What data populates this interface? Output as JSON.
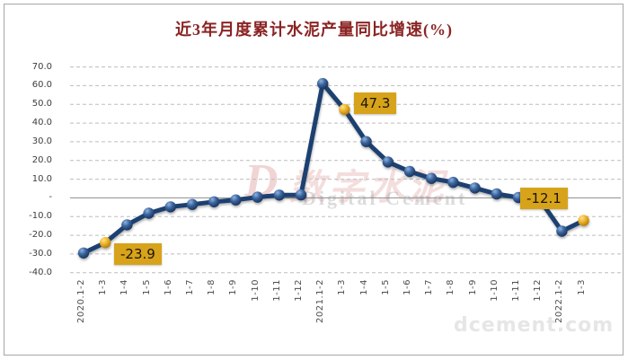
{
  "title": {
    "text": "近3年月度累计水泥产量同比增速(%)"
  },
  "watermark": {
    "logo": "D",
    "cn": "数字水泥",
    "en": "Digital Cement",
    "site": "dcement.com"
  },
  "chart_data": {
    "type": "line",
    "title": "近3年月度累计水泥产量同比增速(%)",
    "categories": [
      "2020.1-2",
      "1-3",
      "1-4",
      "1-5",
      "1-6",
      "1-7",
      "1-8",
      "1-9",
      "1-10",
      "1-11",
      "1-12",
      "2021.1-2",
      "1-3",
      "1-4",
      "1-5",
      "1-6",
      "1-7",
      "1-8",
      "1-9",
      "1-10",
      "1-11",
      "1-12",
      "2022.1-2",
      "1-3"
    ],
    "values": [
      -29.5,
      -23.9,
      -14.4,
      -8.2,
      -4.8,
      -3.5,
      -2.1,
      -1.1,
      0.4,
      1.5,
      1.6,
      61.1,
      47.3,
      30.1,
      19.2,
      14.1,
      10.4,
      8.3,
      5.3,
      2.1,
      0.2,
      -1.2,
      -17.8,
      -12.1
    ],
    "highlight_indices": [
      1,
      12,
      23
    ],
    "data_labels": [
      {
        "category_index": 1,
        "text": "-23.9"
      },
      {
        "category_index": 12,
        "text": "47.3"
      },
      {
        "category_index": 23,
        "text": "-12.1",
        "leader_from_category_index": 21
      }
    ],
    "y_ticks": [
      70,
      60,
      50,
      40,
      30,
      20,
      10,
      0,
      -10,
      -20,
      -30,
      -40
    ],
    "y_tick_labels": [
      "70.0",
      "60.0",
      "50.0",
      "40.0",
      "30.0",
      "20.0",
      "10.0",
      "-",
      "-10.0",
      "-20.0",
      "-30.0",
      "-40.0"
    ],
    "ylim": [
      -40,
      70
    ],
    "xlabel": "",
    "ylabel": "",
    "legend": "none",
    "grid": "horizontal-dashed",
    "colors": {
      "line": "#1f3f70",
      "marker": "#2a5188",
      "highlight_marker": "#edb32a",
      "label_box_bg": "#d7a31b",
      "label_box_text": "#1c1505",
      "gridline": "#bdbdbd",
      "zero_axis": "#8c8c8c",
      "title": "#8b2424"
    }
  }
}
